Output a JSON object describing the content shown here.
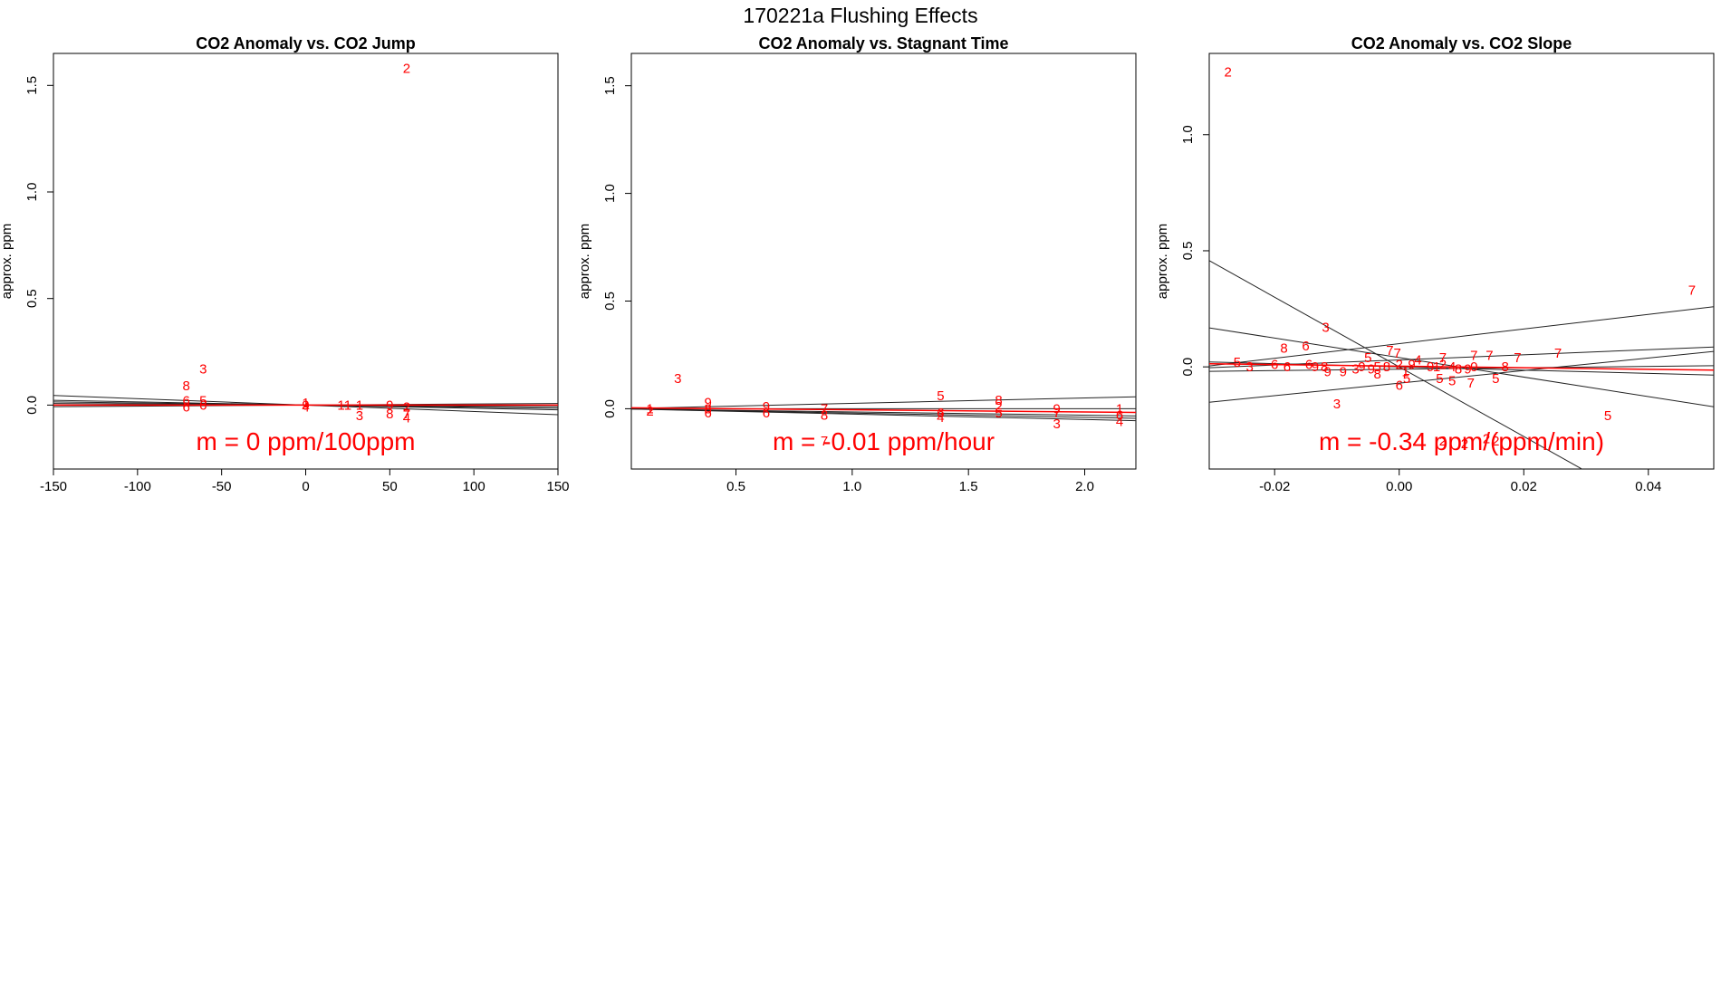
{
  "figure_title": "170221a   Flushing Effects",
  "chart_data": [
    {
      "type": "scatter",
      "title": "CO2 Anomaly vs. CO2 Jump",
      "ylabel": "approx. ppm",
      "xlabel": "",
      "xlim": [
        -150,
        150
      ],
      "ylim": [
        -0.3,
        1.65
      ],
      "xticks": [
        -150,
        -100,
        -50,
        0,
        50,
        100,
        150
      ],
      "xtick_labels": [
        "-150",
        "-100",
        "-50",
        "0",
        "50",
        "100",
        "150"
      ],
      "yticks": [
        0.0,
        0.5,
        1.0,
        1.5
      ],
      "ytick_labels": [
        "0.0",
        "0.5",
        "1.0",
        "1.5"
      ],
      "slope_label": "m = 0 ppm/100ppm",
      "points": [
        {
          "x": 60,
          "y": 1.58,
          "label": "2"
        },
        {
          "x": -61,
          "y": 0.17,
          "label": "3"
        },
        {
          "x": -71,
          "y": 0.09,
          "label": "8"
        },
        {
          "x": -71,
          "y": 0.02,
          "label": "6"
        },
        {
          "x": -71,
          "y": -0.01,
          "label": "6"
        },
        {
          "x": -61,
          "y": 0.02,
          "label": "5"
        },
        {
          "x": -61,
          "y": 0.0,
          "label": "6"
        },
        {
          "x": 0,
          "y": 0.0,
          "label": "9"
        },
        {
          "x": 0,
          "y": 0.01,
          "label": "1"
        },
        {
          "x": 0,
          "y": -0.01,
          "label": "4"
        },
        {
          "x": 21,
          "y": 0.0,
          "label": "1"
        },
        {
          "x": 25,
          "y": 0.0,
          "label": "1"
        },
        {
          "x": 32,
          "y": 0.0,
          "label": "1"
        },
        {
          "x": 32,
          "y": -0.05,
          "label": "3"
        },
        {
          "x": 50,
          "y": 0.0,
          "label": "9"
        },
        {
          "x": 50,
          "y": -0.04,
          "label": "8"
        },
        {
          "x": 60,
          "y": -0.01,
          "label": "2"
        },
        {
          "x": 60,
          "y": -0.04,
          "label": "7"
        },
        {
          "x": 60,
          "y": -0.06,
          "label": "4"
        }
      ],
      "fit_lines_black": [
        [
          -0.0003,
          0.0
        ],
        [
          -0.0001,
          0.0
        ],
        [
          5e-05,
          0.0
        ],
        [
          -0.00015,
          0.0
        ],
        [
          -5e-05,
          0.0
        ]
      ],
      "fit_line_red": [
        0.0,
        0.0
      ]
    },
    {
      "type": "scatter",
      "title": "CO2 Anomaly vs. Stagnant Time",
      "ylabel": "approx. ppm",
      "xlabel": "",
      "xlim": [
        0.05,
        2.22
      ],
      "ylim": [
        -0.28,
        1.65
      ],
      "xticks": [
        0.5,
        1.0,
        1.5,
        2.0
      ],
      "xtick_labels": [
        "0.5",
        "1.0",
        "1.5",
        "2.0"
      ],
      "yticks": [
        0.0,
        0.5,
        1.0,
        1.5
      ],
      "ytick_labels": [
        "0.0",
        "0.5",
        "1.0",
        "1.5"
      ],
      "slope_label": "m = -0.01 ppm/hour",
      "points": [
        {
          "x": 0.13,
          "y": 0.0,
          "label": "1"
        },
        {
          "x": 0.13,
          "y": -0.01,
          "label": "2"
        },
        {
          "x": 0.25,
          "y": 0.14,
          "label": "3"
        },
        {
          "x": 0.38,
          "y": 0.03,
          "label": "9"
        },
        {
          "x": 0.38,
          "y": 0.0,
          "label": "8"
        },
        {
          "x": 0.38,
          "y": -0.02,
          "label": "6"
        },
        {
          "x": 0.63,
          "y": 0.01,
          "label": "9"
        },
        {
          "x": 0.63,
          "y": -0.02,
          "label": "6"
        },
        {
          "x": 0.88,
          "y": 0.0,
          "label": "7"
        },
        {
          "x": 0.88,
          "y": -0.03,
          "label": "8"
        },
        {
          "x": 0.88,
          "y": -0.15,
          "label": "7"
        },
        {
          "x": 1.38,
          "y": 0.06,
          "label": "5"
        },
        {
          "x": 1.38,
          "y": -0.02,
          "label": "6"
        },
        {
          "x": 1.38,
          "y": -0.04,
          "label": "4"
        },
        {
          "x": 1.63,
          "y": 0.04,
          "label": "8"
        },
        {
          "x": 1.63,
          "y": 0.01,
          "label": "2"
        },
        {
          "x": 1.63,
          "y": -0.02,
          "label": "5"
        },
        {
          "x": 1.88,
          "y": 0.0,
          "label": "9"
        },
        {
          "x": 1.88,
          "y": -0.02,
          "label": "7"
        },
        {
          "x": 1.88,
          "y": -0.07,
          "label": "3"
        },
        {
          "x": 2.15,
          "y": 0.0,
          "label": "1"
        },
        {
          "x": 2.15,
          "y": -0.03,
          "label": "6"
        },
        {
          "x": 2.15,
          "y": -0.06,
          "label": "4"
        }
      ],
      "fit_lines_black": [
        [
          0.025,
          0.0
        ],
        [
          -0.02,
          0.0
        ],
        [
          -0.025,
          0.0
        ],
        [
          -0.015,
          0.0
        ],
        [
          0.0,
          0.0
        ]
      ],
      "fit_line_red": [
        -0.01,
        0.005
      ]
    },
    {
      "type": "scatter",
      "title": "CO2 Anomaly vs. CO2 Slope",
      "ylabel": "approx. ppm",
      "xlabel": "",
      "xlim": [
        -0.0305,
        0.0505
      ],
      "ylim": [
        -0.44,
        1.35
      ],
      "xticks": [
        -0.02,
        0.0,
        0.02,
        0.04
      ],
      "xtick_labels": [
        "-0.02",
        "0.00",
        "0.02",
        "0.04"
      ],
      "yticks": [
        0.0,
        0.5,
        1.0
      ],
      "ytick_labels": [
        "0.0",
        "0.5",
        "1.0"
      ],
      "slope_label": "m = -0.34 ppm/(ppm/min)",
      "points": [
        {
          "x": -0.0275,
          "y": 1.27,
          "label": "2"
        },
        {
          "x": 0.047,
          "y": 0.33,
          "label": "7"
        },
        {
          "x": -0.0118,
          "y": 0.17,
          "label": "3"
        },
        {
          "x": -0.015,
          "y": 0.09,
          "label": "6"
        },
        {
          "x": -0.0185,
          "y": 0.08,
          "label": "8"
        },
        {
          "x": -0.026,
          "y": 0.02,
          "label": "5"
        },
        {
          "x": -0.024,
          "y": 0.0,
          "label": "3"
        },
        {
          "x": -0.02,
          "y": 0.01,
          "label": "6"
        },
        {
          "x": -0.018,
          "y": 0.0,
          "label": "6"
        },
        {
          "x": -0.0145,
          "y": 0.01,
          "label": "6"
        },
        {
          "x": -0.0135,
          "y": 0.0,
          "label": "9"
        },
        {
          "x": -0.012,
          "y": 0.0,
          "label": "8"
        },
        {
          "x": -0.0115,
          "y": -0.02,
          "label": "9"
        },
        {
          "x": -0.009,
          "y": -0.02,
          "label": "9"
        },
        {
          "x": -0.007,
          "y": -0.01,
          "label": "3"
        },
        {
          "x": -0.006,
          "y": 0.0,
          "label": "9"
        },
        {
          "x": -0.005,
          "y": 0.04,
          "label": "5"
        },
        {
          "x": -0.0045,
          "y": -0.01,
          "label": "9"
        },
        {
          "x": -0.0035,
          "y": -0.03,
          "label": "8"
        },
        {
          "x": -0.0035,
          "y": 0.0,
          "label": "5"
        },
        {
          "x": -0.002,
          "y": 0.0,
          "label": "8"
        },
        {
          "x": -0.01,
          "y": -0.16,
          "label": "3"
        },
        {
          "x": -0.0015,
          "y": 0.07,
          "label": "7"
        },
        {
          "x": -0.0003,
          "y": 0.06,
          "label": "7"
        },
        {
          "x": 0.0,
          "y": 0.01,
          "label": "2"
        },
        {
          "x": 0.001,
          "y": -0.02,
          "label": "1"
        },
        {
          "x": 0.0012,
          "y": -0.05,
          "label": "5"
        },
        {
          "x": 0.0,
          "y": -0.08,
          "label": "6"
        },
        {
          "x": 0.002,
          "y": 0.01,
          "label": "9"
        },
        {
          "x": 0.003,
          "y": 0.03,
          "label": "4"
        },
        {
          "x": 0.005,
          "y": 0.0,
          "label": "9"
        },
        {
          "x": 0.006,
          "y": 0.0,
          "label": "1"
        },
        {
          "x": 0.007,
          "y": 0.01,
          "label": "2"
        },
        {
          "x": 0.007,
          "y": 0.04,
          "label": "7"
        },
        {
          "x": 0.0065,
          "y": -0.05,
          "label": "5"
        },
        {
          "x": 0.0085,
          "y": 0.0,
          "label": "4"
        },
        {
          "x": 0.0085,
          "y": -0.06,
          "label": "5"
        },
        {
          "x": 0.0095,
          "y": -0.01,
          "label": "8"
        },
        {
          "x": 0.011,
          "y": -0.01,
          "label": "9"
        },
        {
          "x": 0.0115,
          "y": -0.07,
          "label": "7"
        },
        {
          "x": 0.012,
          "y": 0.0,
          "label": "0"
        },
        {
          "x": 0.012,
          "y": 0.05,
          "label": "7"
        },
        {
          "x": 0.0145,
          "y": 0.05,
          "label": "7"
        },
        {
          "x": 0.0155,
          "y": -0.05,
          "label": "5"
        },
        {
          "x": 0.017,
          "y": 0.0,
          "label": "8"
        },
        {
          "x": 0.019,
          "y": 0.04,
          "label": "7"
        },
        {
          "x": 0.0255,
          "y": 0.06,
          "label": "7"
        },
        {
          "x": 0.0335,
          "y": -0.21,
          "label": "5"
        },
        {
          "x": 0.007,
          "y": -0.32,
          "label": "2"
        },
        {
          "x": 0.0105,
          "y": -0.33,
          "label": "2"
        },
        {
          "x": 0.014,
          "y": -0.31,
          "label": "2"
        },
        {
          "x": 0.0155,
          "y": -0.32,
          "label": "2"
        }
      ],
      "fit_lines_black": [
        [
          -15.0,
          0.0
        ],
        [
          3.15,
          0.1
        ],
        [
          1.1,
          0.03
        ],
        [
          -4.2,
          0.04
        ],
        [
          2.7,
          -0.07
        ],
        [
          -0.7,
          0.0
        ],
        [
          0.3,
          -0.01
        ]
      ],
      "fit_line_red": [
        -0.34,
        0.003
      ]
    }
  ]
}
